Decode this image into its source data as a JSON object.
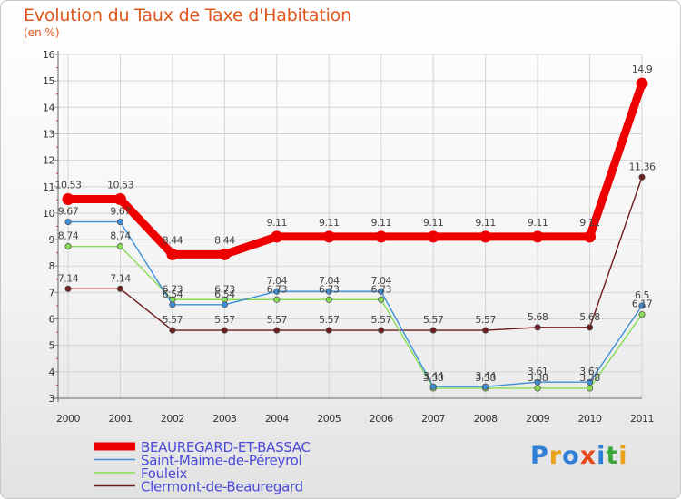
{
  "header": {
    "title": "Evolution du Taux de Taxe d'Habitation",
    "unit": "(en %)"
  },
  "logo": {
    "letters": [
      "P",
      "r",
      "o",
      "x",
      "i",
      "t",
      "i"
    ],
    "colors": [
      "#2f7fd6",
      "#e8a21a",
      "#2f7fd6",
      "#e8491a",
      "#2f7fd6",
      "#3aa63a",
      "#e8a21a"
    ]
  },
  "chart_data": {
    "type": "line",
    "title": "Evolution du Taux de Taxe d'Habitation",
    "ylabel": "(en %)",
    "xlabel": "",
    "ylim": [
      3,
      16
    ],
    "yticks": [
      3,
      4,
      5,
      6,
      7,
      8,
      9,
      10,
      11,
      12,
      13,
      14,
      15,
      16
    ],
    "x": [
      "2000",
      "2001",
      "2002",
      "2003",
      "2004",
      "2005",
      "2006",
      "2007",
      "2008",
      "2009",
      "2010",
      "2011"
    ],
    "legend_position": "bottom-left",
    "series": [
      {
        "name": "BEAUREGARD-ET-BASSAC",
        "color": "#ee0000",
        "values": [
          10.53,
          10.53,
          8.44,
          8.44,
          9.11,
          9.11,
          9.11,
          9.11,
          9.11,
          9.11,
          9.11,
          14.9
        ],
        "labels": [
          "10.53",
          "10.53",
          "8.44",
          "8.44",
          "9.11",
          "9.11",
          "9.11",
          "9.11",
          "9.11",
          "9.11",
          "9.11",
          "14.9"
        ]
      },
      {
        "name": "Saint-Maime-de-Péreyrol",
        "color": "#3c8fd8",
        "values": [
          9.67,
          9.67,
          6.54,
          6.54,
          7.04,
          7.04,
          7.04,
          3.44,
          3.44,
          3.61,
          3.61,
          6.5
        ],
        "labels": [
          "9.67",
          "9.67",
          "6.54",
          "6.54",
          "7.04",
          "7.04",
          "7.04",
          "3.44",
          "3.44",
          "3.61",
          "3.61",
          "6.5"
        ]
      },
      {
        "name": "Fouleix",
        "color": "#88dd55",
        "values": [
          8.74,
          8.74,
          6.73,
          6.73,
          6.73,
          6.73,
          6.73,
          3.38,
          3.38,
          3.38,
          3.38,
          6.17
        ],
        "labels": [
          "8.74",
          "8.74",
          "6.73",
          "6.73",
          "6.73",
          "6.73",
          "6.73",
          "3.38",
          "3.38",
          "3.38",
          "3.38",
          "6.17"
        ]
      },
      {
        "name": "Clermont-de-Beauregard",
        "color": "#6e1c1c",
        "values": [
          7.14,
          7.14,
          5.57,
          5.57,
          5.57,
          5.57,
          5.57,
          5.57,
          5.57,
          5.68,
          5.68,
          11.36
        ],
        "labels": [
          "7.14",
          "7.14",
          "5.57",
          "5.57",
          "5.57",
          "5.57",
          "5.57",
          "5.57",
          "5.57",
          "5.68",
          "5.68",
          "11.36"
        ]
      }
    ]
  }
}
